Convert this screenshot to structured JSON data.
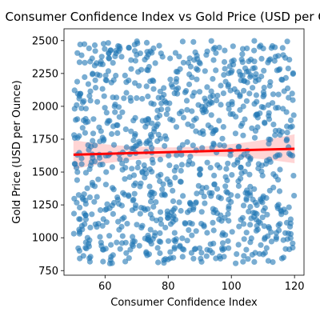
{
  "chart_data": {
    "type": "scatter",
    "title": "Consumer Confidence Index vs Gold Price (USD per Ounce)",
    "xlabel": "Consumer Confidence Index",
    "ylabel": "Gold Price (USD per Ounce)",
    "xlim": [
      47,
      123
    ],
    "ylim": [
      715,
      2590
    ],
    "x_ticks": [
      60,
      80,
      100,
      120
    ],
    "y_ticks": [
      750,
      1000,
      1250,
      1500,
      1750,
      2000,
      2250,
      2500
    ],
    "x_tick_labels": [
      "60",
      "80",
      "100",
      "120"
    ],
    "y_tick_labels": [
      "750",
      "1000",
      "1250",
      "1500",
      "1750",
      "2000",
      "2250",
      "2500"
    ],
    "grid": false,
    "scatter_color": "#1f77b4",
    "scatter_alpha": 0.6,
    "point_count": 1000,
    "x_range": [
      50,
      120
    ],
    "y_range": [
      800,
      2500
    ],
    "trend_line": {
      "color": "#ff0000",
      "x": [
        50,
        120
      ],
      "y": [
        1632,
        1677
      ],
      "confidence_band_color": "#ffb3b3"
    }
  }
}
